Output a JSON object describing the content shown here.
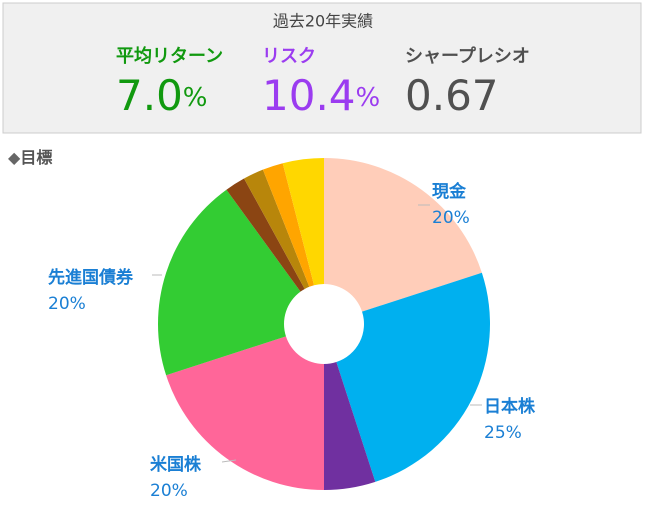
{
  "header": {
    "title": "過去20年実績",
    "stats": [
      {
        "label": "平均リターン",
        "value": "7.0",
        "unit": "%",
        "color": "#11990f"
      },
      {
        "label": "リスク",
        "value": "10.4",
        "unit": "%",
        "color": "#9b3cf0"
      },
      {
        "label": "シャープレシオ",
        "value": "0.67",
        "color": "#505050"
      }
    ]
  },
  "section": {
    "title": "目標"
  },
  "chart_data": {
    "type": "pie",
    "categories": [
      "現金",
      "日本株",
      null,
      "米国株",
      "先進国債券",
      null,
      null,
      null,
      null
    ],
    "values": [
      20,
      25,
      5,
      20,
      20,
      2,
      2,
      2,
      4
    ],
    "value_labels": [
      "20%",
      "25%",
      null,
      "20%",
      "20%",
      null,
      null,
      null,
      null
    ],
    "colors": [
      "#ffcdb9",
      "#00b0ef",
      "#7030a0",
      "#ff6699",
      "#33cc33",
      "#8b4513",
      "#b8860b",
      "#ffa500",
      "#ffd700"
    ],
    "label_color": "#1a7fd4"
  }
}
